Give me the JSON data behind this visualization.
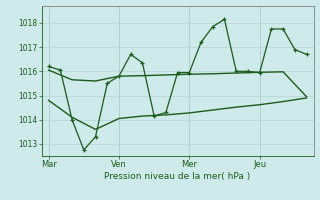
{
  "background_color": "#ceeaea",
  "grid_color": "#b8d8d8",
  "line_color": "#1a5c1a",
  "xlabel": "Pression niveau de la mer( hPa )",
  "ylim": [
    1012.5,
    1018.7
  ],
  "yticks": [
    1013,
    1014,
    1015,
    1016,
    1017,
    1018
  ],
  "xtick_labels": [
    "Mar",
    "Ven",
    "Mer",
    "Jeu"
  ],
  "xtick_positions": [
    0,
    30,
    60,
    90
  ],
  "xlim": [
    -3,
    113
  ],
  "vline_positions": [
    0,
    30,
    60,
    90
  ],
  "line1_x": [
    0,
    5,
    10,
    15,
    20,
    25,
    30,
    35,
    40,
    45,
    50,
    55,
    60,
    65,
    70,
    75,
    80,
    85,
    90,
    95,
    100,
    105,
    110
  ],
  "line1_y": [
    1016.2,
    1016.05,
    1014.0,
    1012.75,
    1013.3,
    1015.5,
    1015.8,
    1016.7,
    1016.35,
    1014.15,
    1014.3,
    1015.95,
    1015.95,
    1017.2,
    1017.85,
    1018.15,
    1016.0,
    1016.0,
    1015.95,
    1017.75,
    1017.75,
    1016.9,
    1016.7
  ],
  "line2_x": [
    0,
    10,
    20,
    30,
    40,
    50,
    60,
    70,
    80,
    90,
    100,
    110
  ],
  "line2_y": [
    1016.05,
    1015.65,
    1015.6,
    1015.8,
    1015.82,
    1015.85,
    1015.88,
    1015.9,
    1015.93,
    1015.96,
    1015.98,
    1014.95
  ],
  "line3_x": [
    0,
    10,
    20,
    30,
    40,
    50,
    60,
    70,
    80,
    90,
    100,
    110
  ],
  "line3_y": [
    1014.8,
    1014.1,
    1013.6,
    1014.05,
    1014.15,
    1014.2,
    1014.28,
    1014.4,
    1014.52,
    1014.62,
    1014.75,
    1014.9
  ],
  "figsize": [
    3.2,
    2.0
  ],
  "dpi": 100
}
